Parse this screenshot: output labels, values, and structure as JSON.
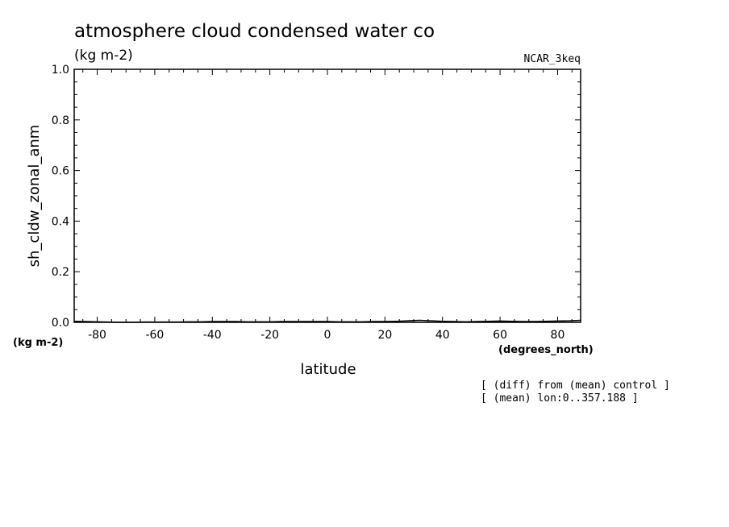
{
  "chart_data": {
    "type": "line",
    "title": "atmosphere cloud condensed water co",
    "units": "(kg m-2)",
    "model": "NCAR_3keq",
    "xlabel": "latitude",
    "xunits": "(degrees_north)",
    "ylabel": "sh_cldw_zonal_anm",
    "yunits": "(kg m-2)",
    "xlim": [
      -88,
      88
    ],
    "ylim": [
      0.0,
      1.0
    ],
    "xticks": [
      -80,
      -60,
      -40,
      -20,
      0,
      20,
      40,
      60,
      80
    ],
    "xtick_labels": [
      "-80",
      "-60",
      "-40",
      "-20",
      "0",
      "20",
      "40",
      "60",
      "80"
    ],
    "yticks": [
      0.0,
      0.2,
      0.4,
      0.6,
      0.8,
      1.0
    ],
    "ytick_labels": [
      "0.0",
      "0.2",
      "0.4",
      "0.6",
      "0.8",
      "1.0"
    ],
    "grid": false,
    "notes": [
      "[ (diff) from (mean) control ]",
      "[ (mean) lon:0..357.188 ]"
    ],
    "series": [
      {
        "x": [
          -88,
          -84,
          -80,
          -76,
          -72,
          -68,
          -64,
          -60,
          -56,
          -52,
          -48,
          -44,
          -40,
          -36,
          -32,
          -28,
          -24,
          -20,
          -16,
          -12,
          -8,
          -4,
          0,
          4,
          8,
          12,
          16,
          20,
          24,
          28,
          32,
          36,
          40,
          44,
          48,
          52,
          56,
          60,
          64,
          68,
          72,
          76,
          80,
          84,
          88
        ],
        "y": [
          0.004,
          0.003,
          0.002,
          0.001,
          0.0,
          0.0,
          0.001,
          0.001,
          0.001,
          0.001,
          0.002,
          0.002,
          0.003,
          0.003,
          0.003,
          0.002,
          0.002,
          0.002,
          0.003,
          0.003,
          0.003,
          0.003,
          0.003,
          0.002,
          0.002,
          0.002,
          0.003,
          0.003,
          0.004,
          0.006,
          0.008,
          0.006,
          0.004,
          0.003,
          0.002,
          0.003,
          0.004,
          0.005,
          0.004,
          0.003,
          0.003,
          0.004,
          0.005,
          0.006,
          0.008
        ]
      }
    ]
  }
}
